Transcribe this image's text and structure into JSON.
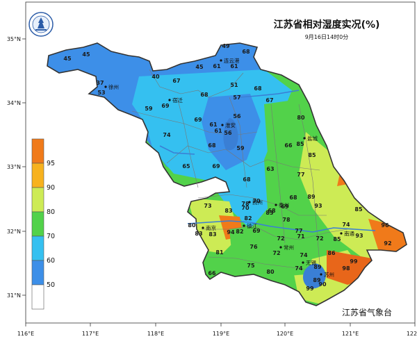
{
  "title": "江苏省相对湿度实况(%)",
  "subtitle": "9月16日14时0分",
  "credit": "江苏省气象台",
  "logo_text": "江苏省气象台",
  "axes": {
    "x_ticks": [
      "116°E",
      "117°E",
      "118°E",
      "119°E",
      "120°E",
      "121°E",
      "122°E"
    ],
    "y_ticks": [
      "35°N",
      "34°N",
      "33°N",
      "32°N",
      "31°N"
    ]
  },
  "legend": {
    "labels": [
      "95",
      "90",
      "80",
      "70",
      "60",
      "50"
    ],
    "colors": [
      "#f07a1a",
      "#f7b21e",
      "#cdeb55",
      "#52d24a",
      "#35c0f0",
      "#3d8fe8",
      "#ffffff"
    ]
  },
  "colors": {
    "border": "#333333",
    "river": "#3a7fd5",
    "lake": "#3a7fd5",
    "county_line": "#777777"
  },
  "cities": [
    {
      "name": "徐州",
      "value": "53"
    },
    {
      "name": "连云港",
      "value": "61"
    },
    {
      "name": "宿迁",
      "value": "69"
    },
    {
      "name": "淮安",
      "value": "61"
    },
    {
      "name": "盐城",
      "value": "85"
    },
    {
      "name": "扬州",
      "value": "70"
    },
    {
      "name": "泰州",
      "value": "68"
    },
    {
      "name": "南京",
      "value": "83"
    },
    {
      "name": "镇江",
      "value": "82"
    },
    {
      "name": "南通",
      "value": "85"
    },
    {
      "name": "常州",
      "value": "72"
    },
    {
      "name": "无锡",
      "value": "74"
    },
    {
      "name": "苏州",
      "value": "89"
    }
  ],
  "station_values": [
    "45",
    "45",
    "37",
    "40",
    "67",
    "45",
    "49",
    "68",
    "61",
    "51",
    "68",
    "68",
    "57",
    "67",
    "59",
    "56",
    "69",
    "61",
    "56",
    "74",
    "68",
    "59",
    "66",
    "80",
    "65",
    "69",
    "68",
    "63",
    "77",
    "85",
    "73",
    "83",
    "78",
    "70",
    "83",
    "69",
    "68",
    "89",
    "93",
    "85",
    "80",
    "83",
    "94",
    "82",
    "69",
    "78",
    "77",
    "74",
    "96",
    "81",
    "76",
    "72",
    "71",
    "72",
    "93",
    "92",
    "66",
    "75",
    "80",
    "74",
    "86",
    "99",
    "89",
    "98",
    "99",
    "90"
  ]
}
